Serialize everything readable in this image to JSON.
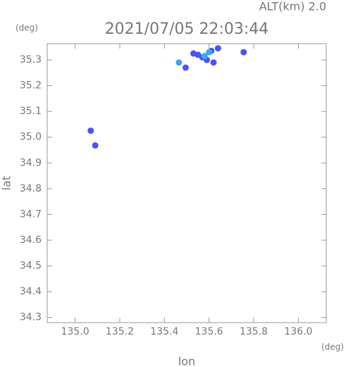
{
  "chart_data": {
    "type": "scatter",
    "annotation": "ALT(km)  2.0",
    "title": "2021/07/05 22:03:44",
    "y_unit": "(deg)",
    "x_unit": "(deg)",
    "y_label": "lat",
    "x_label": "lon",
    "xlim": [
      134.875,
      136.125
    ],
    "ylim": [
      34.28,
      35.363
    ],
    "xticks": [
      {
        "value": 135,
        "label": "135.0"
      },
      135.2,
      135.4,
      135.6,
      135.8,
      {
        "value": 136,
        "label": "136.0"
      }
    ],
    "yticks": [
      34.3,
      34.4,
      34.5,
      34.6,
      34.7,
      34.8,
      34.9,
      {
        "value": 35,
        "label": "35.0"
      },
      35.1,
      35.2,
      35.3
    ],
    "series": [
      {
        "color": "#4b55ee",
        "x": [
          135.07,
          135.09,
          135.755,
          135.495,
          135.62,
          135.64,
          135.55,
          135.53,
          135.57,
          135.61,
          135.59
        ],
        "values": [
          35.025,
          34.968,
          35.33,
          35.27,
          35.29,
          35.345,
          35.32,
          35.325,
          35.31,
          35.335,
          35.3
        ]
      },
      {
        "color": "#3fa6f2",
        "x": [
          135.465,
          135.58,
          135.6
        ],
        "values": [
          35.29,
          35.315,
          35.33
        ]
      }
    ]
  }
}
